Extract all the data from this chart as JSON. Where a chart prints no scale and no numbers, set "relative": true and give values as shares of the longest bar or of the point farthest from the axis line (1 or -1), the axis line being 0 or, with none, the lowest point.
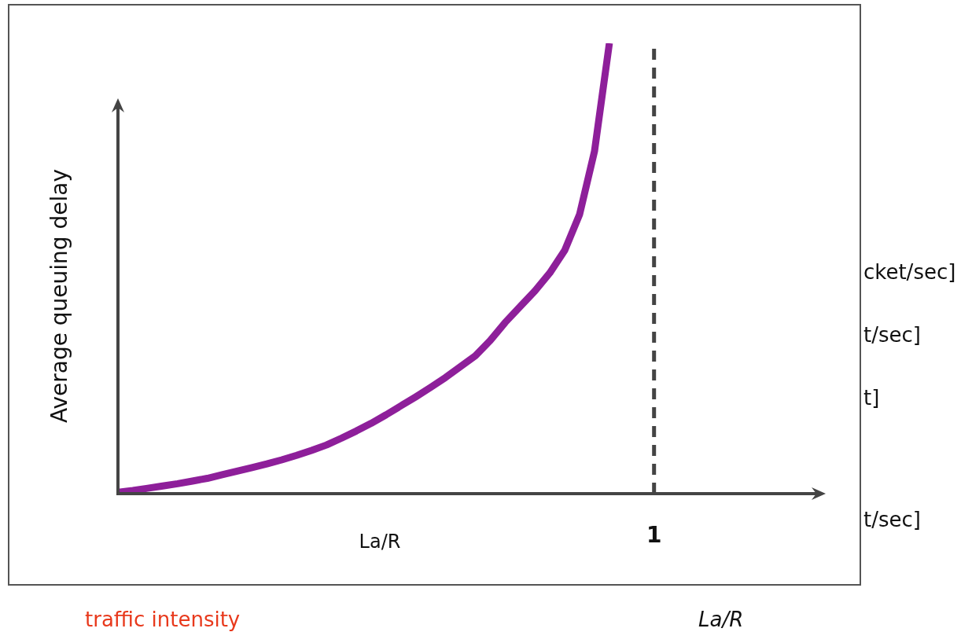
{
  "chart_data": {
    "type": "line",
    "xlabel": "La/R",
    "ylabel": "Average queuing delay",
    "relative": true,
    "categories": [
      null,
      null,
      null,
      null,
      null,
      null,
      null,
      null,
      null,
      null,
      null,
      null,
      null,
      null,
      null,
      null,
      null,
      null,
      null,
      null,
      null,
      null,
      null,
      null,
      null,
      null,
      null,
      null,
      null,
      null,
      null,
      null,
      null,
      null,
      null,
      null,
      null
    ],
    "series": [
      {
        "color": "#8e1f9a",
        "values": [
          0.003,
          0.007,
          0.012,
          0.017,
          0.022,
          0.028,
          0.034,
          0.042,
          0.05,
          0.058,
          0.066,
          0.075,
          0.085,
          0.096,
          0.108,
          0.123,
          0.139,
          0.156,
          0.175,
          0.195,
          0.215,
          0.236,
          0.258,
          0.282,
          0.306,
          0.34,
          0.38,
          0.415,
          0.45,
          0.49,
          0.54,
          0.62,
          0.76,
          1,
          null,
          null,
          null
        ]
      }
    ],
    "ref_lines": [
      {
        "axis": "x",
        "label": "1",
        "color": "#444444",
        "line_style": "dashed"
      }
    ],
    "annotations": [
      "cket/sec]",
      "t/sec]",
      "t]",
      "t/sec]",
      "traffic intensity",
      "La/R"
    ]
  }
}
